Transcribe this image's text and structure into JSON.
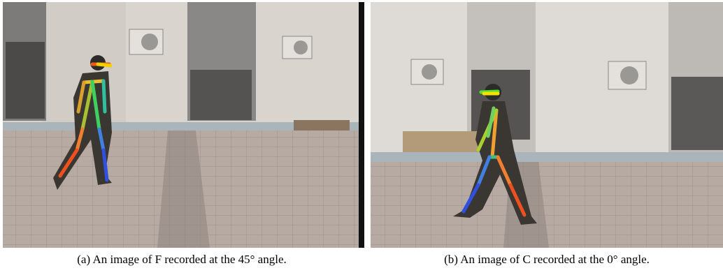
{
  "figure": {
    "subfigures": [
      {
        "caption": "(a) An image of F recorded at the 45° angle."
      },
      {
        "caption": "(b) An image of C recorded at the 0° angle."
      }
    ]
  }
}
